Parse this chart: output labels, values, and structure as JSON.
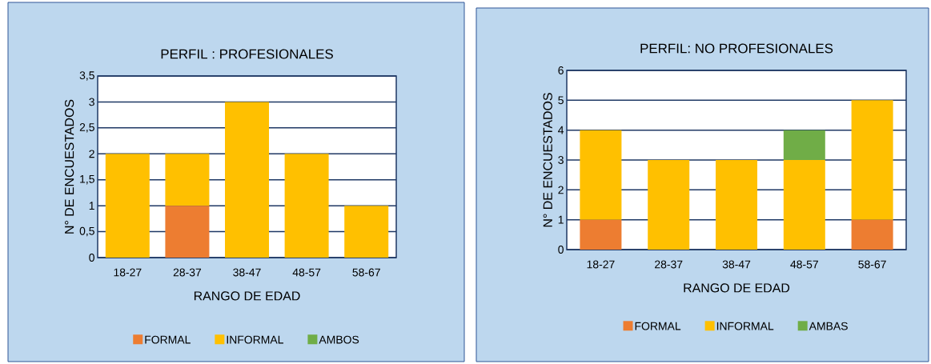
{
  "chart_data": [
    {
      "type": "bar",
      "title": "PERFIL : PROFESIONALES",
      "xlabel": "RANGO DE EDAD",
      "ylabel": "N° DE ENCUESTADOS",
      "stacked": true,
      "grid": "y",
      "legend": "bottom",
      "categories": [
        "18-27",
        "28-37",
        "38-47",
        "48-57",
        "58-67"
      ],
      "ylim": [
        0,
        3.5
      ],
      "yticks": [
        0,
        {
          "value": 0.5,
          "label": "0,5"
        },
        1,
        {
          "value": 1.5,
          "label": "1,5"
        },
        2,
        {
          "value": 2.5,
          "label": "2,5"
        },
        3,
        {
          "value": 3.5,
          "label": "3,5"
        }
      ],
      "series": [
        {
          "name": "FORMAL",
          "color": "#ed7d31",
          "values": [
            0,
            1,
            0,
            0,
            0
          ]
        },
        {
          "name": "INFORMAL",
          "color": "#ffc000",
          "values": [
            2,
            1,
            3,
            2,
            1
          ]
        },
        {
          "name": "AMBOS",
          "color": "#70ad47",
          "values": [
            0,
            0,
            0,
            0,
            0
          ]
        }
      ]
    },
    {
      "type": "bar",
      "title": "PERFIL: NO PROFESIONALES",
      "xlabel": "RANGO DE EDAD",
      "ylabel": "N° DE ENCUESTADOS",
      "stacked": true,
      "grid": "y",
      "legend": "bottom",
      "categories": [
        "18-27",
        "28-37",
        "38-47",
        "48-57",
        "58-67"
      ],
      "ylim": [
        0,
        6
      ],
      "yticks": [
        0,
        1,
        2,
        3,
        4,
        5,
        6
      ],
      "series": [
        {
          "name": "FORMAL",
          "color": "#ed7d31",
          "values": [
            1,
            0,
            0,
            0,
            1
          ]
        },
        {
          "name": "INFORMAL",
          "color": "#ffc000",
          "values": [
            3,
            3,
            3,
            3,
            4
          ]
        },
        {
          "name": "AMBAS",
          "color": "#70ad47",
          "values": [
            0,
            0,
            0,
            1,
            0
          ]
        }
      ]
    }
  ]
}
